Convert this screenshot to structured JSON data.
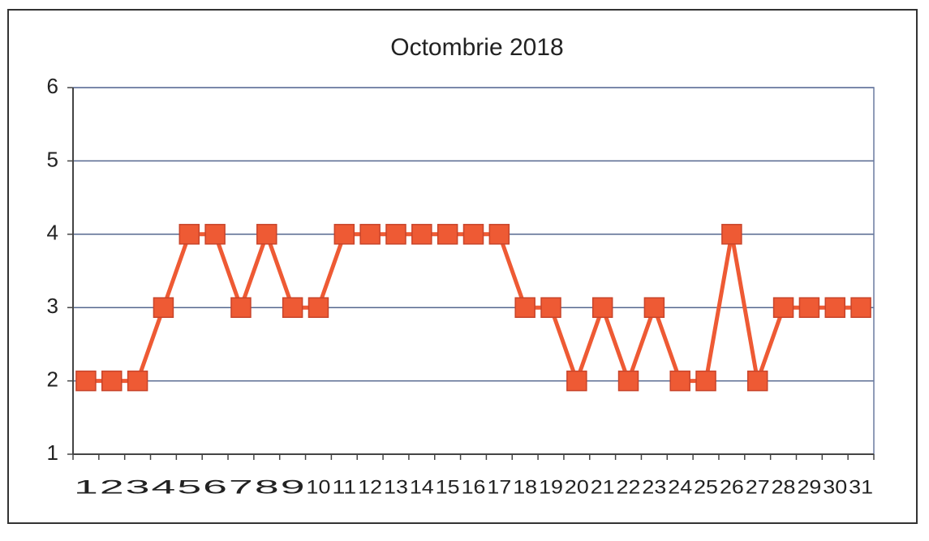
{
  "chart_data": {
    "type": "line",
    "title": "Octombrie 2018",
    "categories": [
      "1",
      "2",
      "3",
      "4",
      "5",
      "6",
      "7",
      "8",
      "9",
      "10",
      "11",
      "12",
      "13",
      "14",
      "15",
      "16",
      "17",
      "18",
      "19",
      "20",
      "21",
      "22",
      "23",
      "24",
      "25",
      "26",
      "27",
      "28",
      "29",
      "30",
      "31"
    ],
    "series": [
      {
        "name": "Octombrie 2018",
        "color": "#ee5a34",
        "values": [
          2,
          2,
          2,
          3,
          4,
          4,
          3,
          4,
          3,
          3,
          4,
          4,
          4,
          4,
          4,
          4,
          4,
          3,
          3,
          2,
          3,
          2,
          3,
          2,
          2,
          4,
          2,
          3,
          3,
          3,
          3
        ]
      }
    ],
    "ylim": [
      1,
      6
    ],
    "yticks": [
      1,
      2,
      3,
      4,
      5,
      6
    ],
    "grid": true,
    "marker": "square"
  }
}
